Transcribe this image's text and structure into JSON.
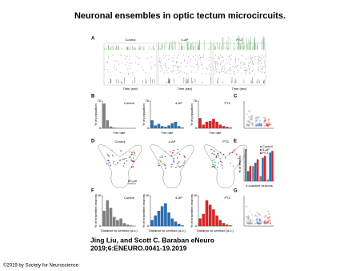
{
  "header": {
    "title": "Neuronal ensembles in optic tectum microcircuits."
  },
  "figure": {
    "conditions": [
      "Control",
      "4-AP",
      "PTZ"
    ],
    "colors": [
      "#7f7f7f",
      "#2b6cb0",
      "#d62728"
    ],
    "panel_labels": [
      "A",
      "B",
      "C",
      "D",
      "E",
      "F",
      "G"
    ],
    "panel_a": {
      "x_label": "Time (sec)"
    },
    "panel_b": {
      "y_label": "% of population",
      "x_label": "Fire rate",
      "ylim": [
        0,
        75
      ],
      "yticks": [
        0,
        75
      ],
      "series": [
        [
          68,
          22,
          5,
          2,
          1,
          1,
          0,
          0,
          0,
          1
        ],
        [
          22,
          8,
          12,
          6,
          4,
          8,
          14,
          18,
          6,
          2
        ],
        [
          28,
          10,
          18,
          20,
          26,
          18,
          10,
          6,
          4,
          2
        ]
      ]
    },
    "panel_d": {
      "scale_bar": "50 µm"
    },
    "panel_e": {
      "y_label": "% of frames",
      "x_label": "# coactive neurons",
      "ylim": [
        0,
        40
      ],
      "series": [
        [
          38,
          18,
          6,
          2
        ],
        [
          12,
          22,
          28,
          34
        ],
        [
          18,
          26,
          30,
          36
        ]
      ]
    },
    "panel_f": {
      "y_label": "% of ensemble neurons",
      "x_label": "Distance to centroid (a.u.)",
      "ylim": [
        0,
        40
      ],
      "yticks": [
        0,
        40
      ],
      "series": [
        [
          20,
          34,
          24,
          12,
          8,
          10,
          4,
          2,
          1,
          0
        ],
        [
          8,
          14,
          20,
          26,
          30,
          18,
          10,
          6,
          3,
          1
        ],
        [
          10,
          16,
          34,
          28,
          22,
          14,
          8,
          4,
          2,
          1
        ]
      ]
    }
  },
  "citation": {
    "authors": "Jing Liu, and Scott C. Baraban eNeuro",
    "reference": "2019;6:ENEURO.0041-19.2019"
  },
  "footer": {
    "copyright": "©2019 by Society for Neuroscience"
  }
}
